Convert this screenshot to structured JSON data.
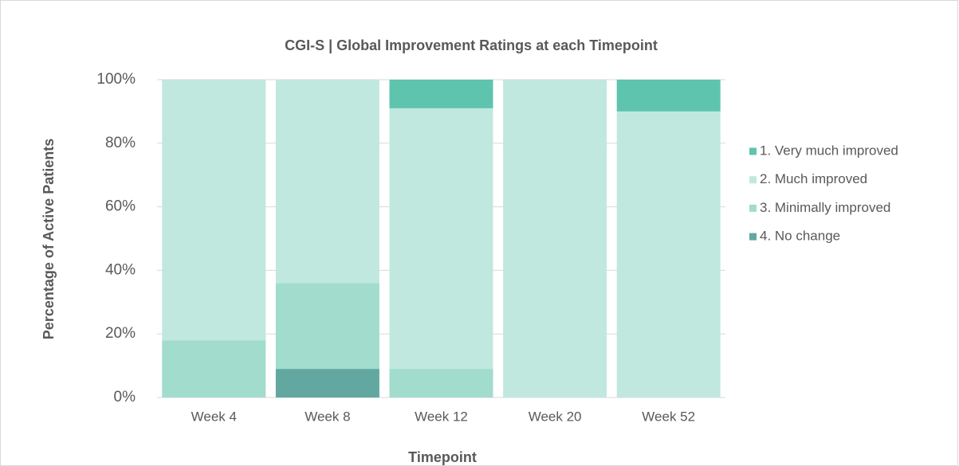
{
  "chart_data": {
    "type": "stacked_bar",
    "title": "CGI-S | Global Improvement Ratings at each Timepoint",
    "x_label": "Timepoint",
    "y_label": "Percentage of Active Patients",
    "categories": [
      "Week 4",
      "Week 8",
      "Week 12",
      "Week 20",
      "Week 52"
    ],
    "series": [
      {
        "name": "1. Very much improved",
        "color": "#5fc4ae",
        "values": [
          0,
          0,
          9,
          0,
          10
        ]
      },
      {
        "name": "2. Much improved",
        "color": "#c0e8de",
        "values": [
          82,
          64,
          82,
          100,
          90
        ]
      },
      {
        "name": "3. Minimally improved",
        "color": "#a1dccd",
        "values": [
          18,
          27,
          9,
          0,
          0
        ]
      },
      {
        "name": "4. No change",
        "color": "#62a8a0",
        "values": [
          0,
          9,
          0,
          0,
          0
        ]
      }
    ],
    "ylim": [
      0,
      100
    ],
    "yticks": [
      {
        "value": 0,
        "label": "0%"
      },
      {
        "value": 20,
        "label": "20%"
      },
      {
        "value": 40,
        "label": "40%"
      },
      {
        "value": 60,
        "label": "60%"
      },
      {
        "value": 80,
        "label": "80%"
      },
      {
        "value": 100,
        "label": "100%"
      }
    ],
    "grid": true,
    "legend": "right"
  }
}
